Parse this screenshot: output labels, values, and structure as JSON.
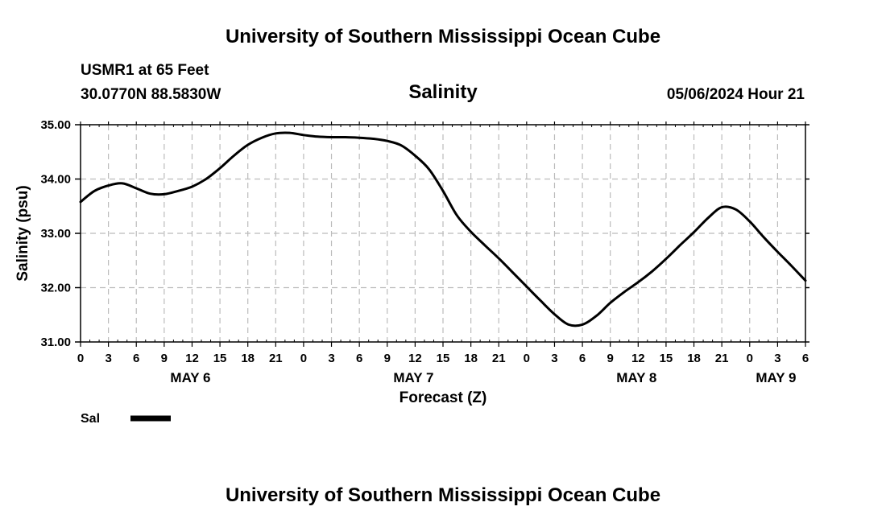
{
  "header": {
    "title": "University of Southern Mississippi Ocean Cube",
    "station": "USMR1 at 65 Feet",
    "coords": "30.0770N  88.5830W",
    "datetime": "05/06/2024 Hour 21"
  },
  "footer": {
    "title": "University of Southern Mississippi Ocean Cube"
  },
  "chart_data": {
    "type": "line",
    "title": "Salinity",
    "xlabel": "Forecast (Z)",
    "ylabel": "Salinity (psu)",
    "ylim": [
      31.0,
      35.0
    ],
    "yticks": [
      "31.00",
      "32.00",
      "33.00",
      "34.00",
      "35.00"
    ],
    "xlim_hours": [
      0,
      78
    ],
    "xtick_labels": [
      "0",
      "3",
      "6",
      "9",
      "12",
      "15",
      "18",
      "21",
      "0",
      "3",
      "6",
      "9",
      "12",
      "15",
      "18",
      "21",
      "0",
      "3",
      "6",
      "9",
      "12",
      "15",
      "18",
      "21",
      "0",
      "3",
      "6"
    ],
    "day_labels": [
      {
        "label": "MAY 6",
        "hour": 12
      },
      {
        "label": "MAY 7",
        "hour": 36
      },
      {
        "label": "MAY 8",
        "hour": 60
      },
      {
        "label": "MAY 9",
        "hour": 75
      }
    ],
    "legend": [
      {
        "name": "Sal",
        "color": "#000000"
      }
    ],
    "series": [
      {
        "name": "Sal",
        "color": "#000000",
        "x": [
          0,
          1.5,
          3,
          4.5,
          6,
          7.5,
          9,
          10.5,
          12,
          13.5,
          15,
          16.5,
          18,
          19.5,
          21,
          22.5,
          24,
          25.5,
          27,
          28.5,
          30,
          31.5,
          33,
          34.5,
          36,
          37.5,
          39,
          40.5,
          42,
          43.5,
          45,
          46.5,
          48,
          49.5,
          51,
          52.5,
          54,
          55.5,
          57,
          58.5,
          60,
          61.5,
          63,
          64.5,
          66,
          67.5,
          69,
          70.5,
          72,
          73.5,
          75,
          76.5,
          78
        ],
        "y": [
          33.58,
          33.78,
          33.88,
          33.92,
          33.83,
          33.73,
          33.72,
          33.78,
          33.86,
          34.0,
          34.2,
          34.43,
          34.63,
          34.76,
          34.84,
          34.85,
          34.81,
          34.78,
          34.77,
          34.77,
          34.76,
          34.74,
          34.7,
          34.62,
          34.43,
          34.18,
          33.78,
          33.33,
          33.03,
          32.78,
          32.54,
          32.28,
          32.02,
          31.76,
          31.51,
          31.32,
          31.32,
          31.48,
          31.72,
          31.92,
          32.1,
          32.3,
          32.53,
          32.78,
          33.02,
          33.28,
          33.48,
          33.44,
          33.22,
          32.93,
          32.66,
          32.4,
          32.13
        ]
      }
    ]
  }
}
